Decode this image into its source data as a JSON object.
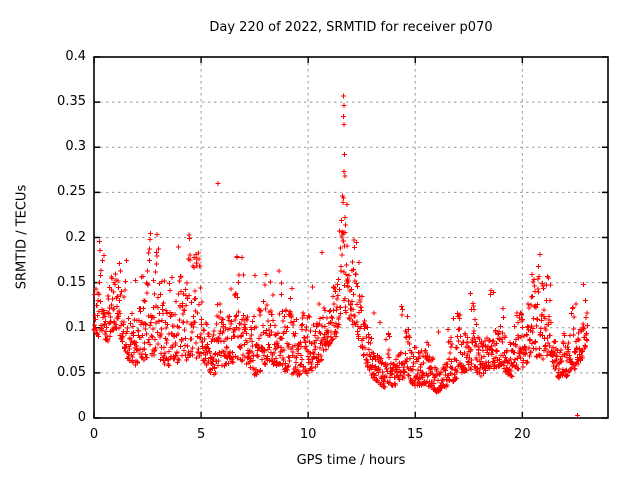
{
  "window": {
    "background": "#ffffff"
  },
  "chart_data": {
    "type": "scatter",
    "title": "Day 220 of 2022, SRMTID for receiver p070",
    "xlabel": "GPS time / hours",
    "ylabel": "SRMTID / TECUs",
    "xlim": [
      0,
      24
    ],
    "ylim": [
      0,
      0.4
    ],
    "xticks": [
      0,
      5,
      10,
      15,
      20
    ],
    "xtick_labels": [
      "0",
      "5",
      "10",
      "15",
      "20"
    ],
    "yticks": [
      0,
      0.05,
      0.1,
      0.15,
      0.2,
      0.25,
      0.3,
      0.35,
      0.4
    ],
    "ytick_labels": [
      "0",
      "0.05",
      "0.1",
      "0.15",
      "0.2",
      "0.25",
      "0.3",
      "0.35",
      "0.4"
    ],
    "grid": true,
    "legend": "none",
    "series_name": "SRMTID",
    "marker": {
      "shape": "plus",
      "color": "#ff0000",
      "size": 4.6,
      "stroke_width": 1.25
    },
    "colors": {
      "grid": "#999999",
      "border": "#000000",
      "text": "#000000"
    },
    "sampling_interval_hours": 0.012,
    "time_range": [
      0,
      23.05
    ],
    "seed": 220,
    "envelope": [
      [
        0.0,
        0.09,
        0.25
      ],
      [
        0.3,
        0.08,
        0.21
      ],
      [
        0.7,
        0.08,
        0.17
      ],
      [
        1.1,
        0.09,
        0.23
      ],
      [
        1.5,
        0.06,
        0.18
      ],
      [
        2.0,
        0.05,
        0.145
      ],
      [
        2.4,
        0.05,
        0.17
      ],
      [
        2.75,
        0.06,
        0.25
      ],
      [
        3.1,
        0.05,
        0.19
      ],
      [
        3.5,
        0.05,
        0.15
      ],
      [
        4.0,
        0.05,
        0.205
      ],
      [
        4.4,
        0.05,
        0.23
      ],
      [
        4.8,
        0.05,
        0.235
      ],
      [
        5.2,
        0.05,
        0.16
      ],
      [
        5.6,
        0.04,
        0.135
      ],
      [
        6.0,
        0.05,
        0.21
      ],
      [
        6.5,
        0.05,
        0.19
      ],
      [
        7.0,
        0.05,
        0.175
      ],
      [
        7.5,
        0.04,
        0.16
      ],
      [
        8.0,
        0.04,
        0.17
      ],
      [
        8.4,
        0.05,
        0.165
      ],
      [
        9.0,
        0.04,
        0.15
      ],
      [
        9.5,
        0.04,
        0.145
      ],
      [
        10.0,
        0.04,
        0.125
      ],
      [
        10.5,
        0.05,
        0.17
      ],
      [
        10.9,
        0.07,
        0.2
      ],
      [
        11.3,
        0.08,
        0.225
      ],
      [
        11.6,
        0.11,
        0.25
      ],
      [
        11.9,
        0.1,
        0.24
      ],
      [
        12.2,
        0.09,
        0.21
      ],
      [
        12.6,
        0.06,
        0.16
      ],
      [
        13.0,
        0.04,
        0.115
      ],
      [
        13.5,
        0.03,
        0.1
      ],
      [
        14.0,
        0.03,
        0.115
      ],
      [
        14.5,
        0.04,
        0.13
      ],
      [
        15.0,
        0.03,
        0.105
      ],
      [
        15.5,
        0.03,
        0.12
      ],
      [
        16.0,
        0.025,
        0.09
      ],
      [
        16.5,
        0.03,
        0.105
      ],
      [
        17.0,
        0.04,
        0.13
      ],
      [
        17.5,
        0.05,
        0.15
      ],
      [
        18.0,
        0.04,
        0.135
      ],
      [
        18.5,
        0.05,
        0.14
      ],
      [
        19.0,
        0.05,
        0.125
      ],
      [
        19.5,
        0.04,
        0.11
      ],
      [
        20.0,
        0.05,
        0.13
      ],
      [
        20.4,
        0.06,
        0.175
      ],
      [
        20.9,
        0.05,
        0.19
      ],
      [
        21.3,
        0.06,
        0.155
      ],
      [
        21.7,
        0.04,
        0.115
      ],
      [
        22.1,
        0.04,
        0.12
      ],
      [
        22.5,
        0.05,
        0.135
      ],
      [
        22.8,
        0.06,
        0.16
      ],
      [
        23.05,
        0.08,
        0.16
      ]
    ],
    "outliers": [
      [
        11.66,
        0.357
      ],
      [
        11.67,
        0.346
      ],
      [
        11.66,
        0.334
      ],
      [
        11.68,
        0.325
      ],
      [
        11.69,
        0.292
      ],
      [
        11.68,
        0.273
      ],
      [
        11.71,
        0.268
      ],
      [
        11.64,
        0.244
      ],
      [
        11.72,
        0.222
      ],
      [
        11.74,
        0.214
      ],
      [
        11.61,
        0.206
      ],
      [
        11.63,
        0.196
      ],
      [
        5.8,
        0.26
      ],
      [
        22.57,
        0.003
      ]
    ]
  }
}
